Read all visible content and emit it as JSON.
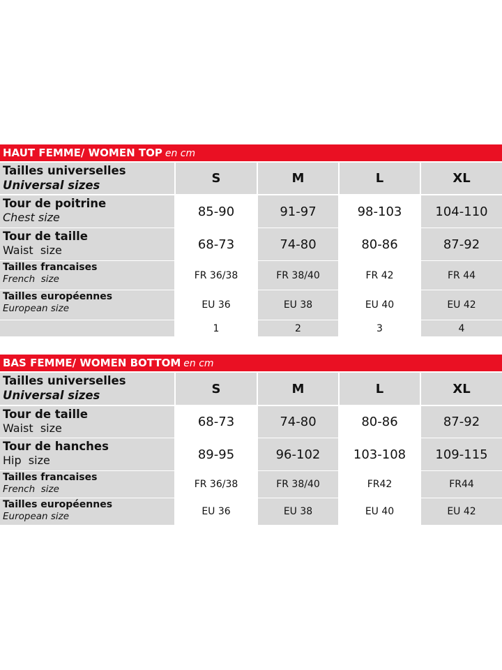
{
  "tables": [
    {
      "title": "HAUT FEMME/ WOMEN TOP",
      "unit": "en cm",
      "header": {
        "label": "Tailles universelles",
        "sublabel": "Universal sizes",
        "sizes": [
          "S",
          "M",
          "L",
          "XL"
        ]
      },
      "rows": [
        {
          "label": "Tour de poitrine",
          "sublabel": "Chest size",
          "values": [
            "85-90",
            "91-97",
            "98-103",
            "104-110"
          ]
        },
        {
          "label": "Tour de taille",
          "sublabel": "Waist  size",
          "values": [
            "68-73",
            "74-80",
            "80-86",
            "87-92"
          ]
        },
        {
          "label": "Tailles francaises",
          "sublabel": "French  size",
          "values": [
            "FR 36/38",
            "FR 38/40",
            "FR 42",
            "FR 44"
          ]
        },
        {
          "label": "Tailles européennes",
          "sublabel": "European size",
          "values": [
            "EU 36",
            "EU 38",
            "EU 40",
            "EU 42"
          ]
        }
      ],
      "footer": [
        1,
        2,
        3,
        4
      ]
    },
    {
      "title": "BAS FEMME/ WOMEN BOTTOM",
      "unit": "en cm",
      "header": {
        "label": "Tailles universelles",
        "sublabel": "Universal sizes",
        "sizes": [
          "S",
          "M",
          "L",
          "XL"
        ]
      },
      "rows": [
        {
          "label": "Tour de taille",
          "sublabel": "Waist  size",
          "values": [
            "68-73",
            "74-80",
            "80-86",
            "87-92"
          ]
        },
        {
          "label": "Tour de hanches",
          "sublabel": "Hip  size",
          "values": [
            "89-95",
            "96-102",
            "103-108",
            "109-115"
          ]
        },
        {
          "label": "Tailles francaises",
          "sublabel": "French  size",
          "values": [
            "FR 36/38",
            "FR 38/40",
            "FR42",
            "FR44"
          ]
        },
        {
          "label": "Tailles européennes",
          "sublabel": "European size",
          "values": [
            "EU 36",
            "EU 38",
            "EU 40",
            "EU 42"
          ]
        }
      ]
    }
  ]
}
